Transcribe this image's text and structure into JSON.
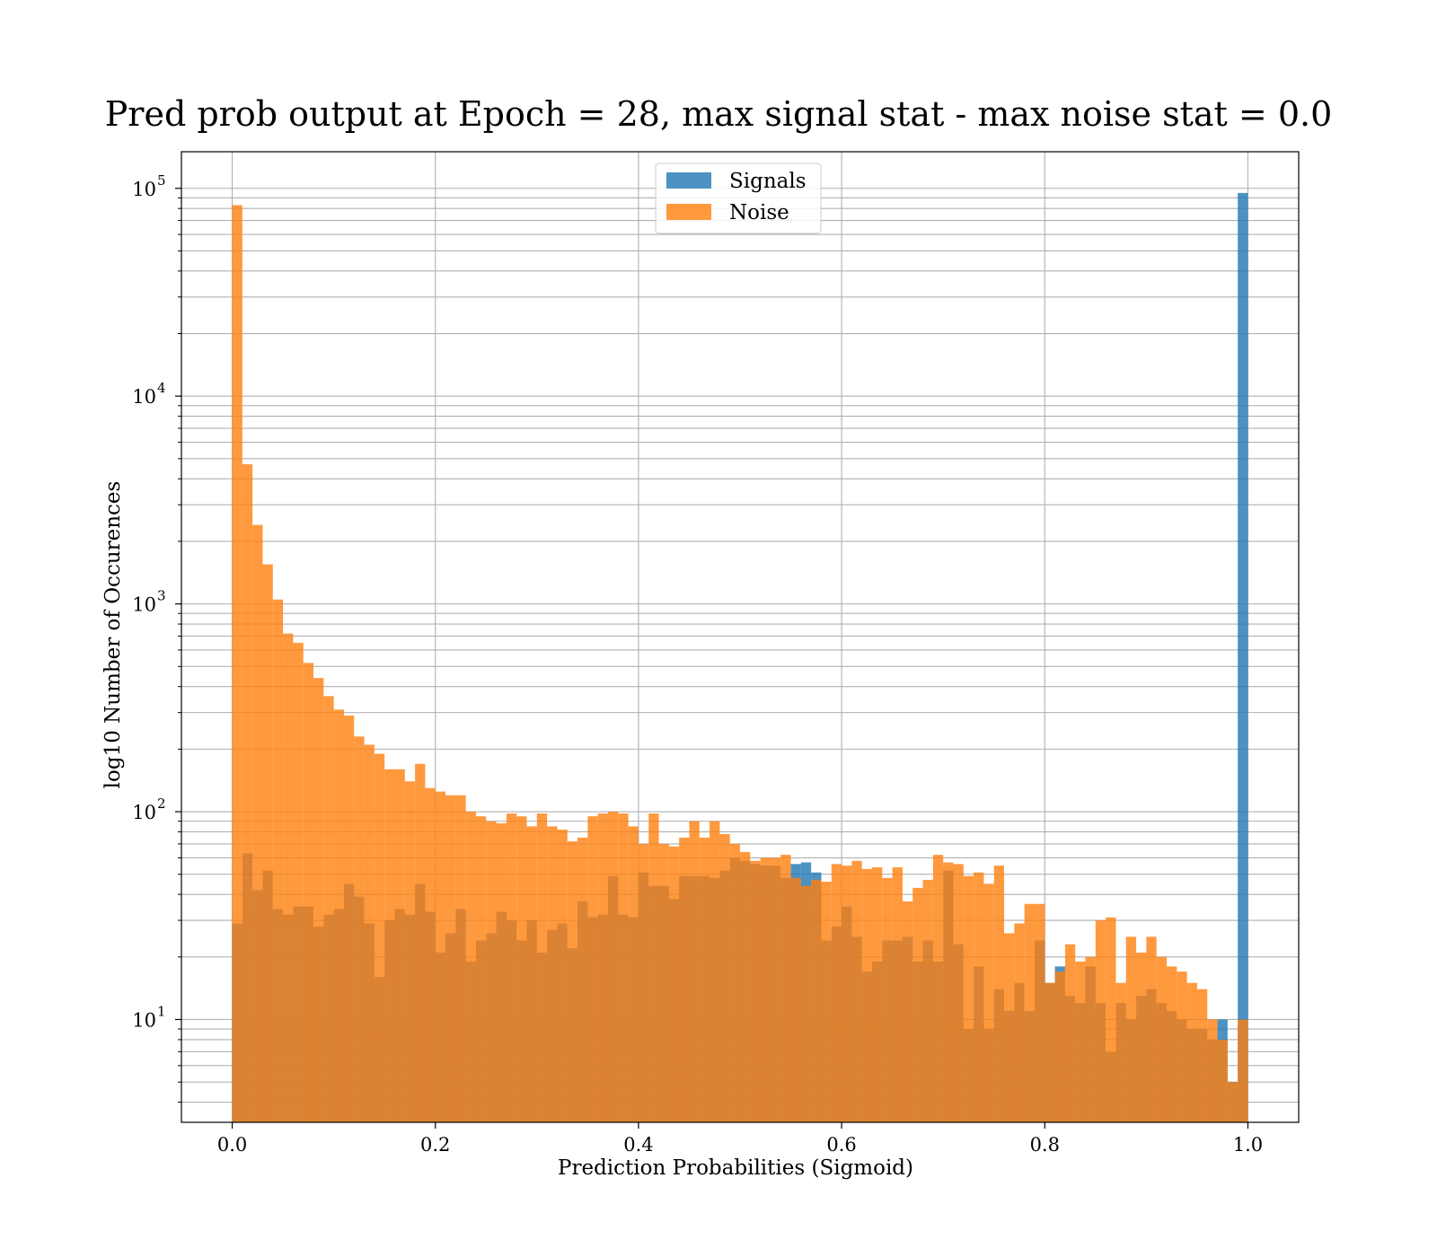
{
  "chart_data": {
    "type": "bar",
    "subtype": "overlaid-histogram",
    "title": "Pred prob output at Epoch = 28, max signal stat - max noise stat = 0.0",
    "xlabel": "Prediction Probabilities (Sigmoid)",
    "ylabel": "log10 Number of Occurences",
    "xlim": [
      -0.05,
      1.05
    ],
    "ylim": [
      3.2,
      150000
    ],
    "yscale": "log",
    "grid": true,
    "legend_position": "top-center",
    "x_ticks": [
      {
        "value": 0.0,
        "label": "0.0"
      },
      {
        "value": 0.2,
        "label": "0.2"
      },
      {
        "value": 0.4,
        "label": "0.4"
      },
      {
        "value": 0.6,
        "label": "0.6"
      },
      {
        "value": 0.8,
        "label": "0.8"
      },
      {
        "value": 1.0,
        "label": "1.0"
      }
    ],
    "y_ticks": [
      {
        "value": 10,
        "base": "10",
        "exp": "1"
      },
      {
        "value": 100,
        "base": "10",
        "exp": "2"
      },
      {
        "value": 1000,
        "base": "10",
        "exp": "3"
      },
      {
        "value": 10000,
        "base": "10",
        "exp": "4"
      },
      {
        "value": 100000,
        "base": "10",
        "exp": "5"
      }
    ],
    "bins": {
      "start": 0.0,
      "end": 1.0,
      "count": 100
    },
    "series": [
      {
        "name": "Signals",
        "color": "#1f77b4",
        "opacity": 0.8,
        "values": [
          29,
          63,
          42,
          52,
          34,
          32,
          35,
          35,
          28,
          32,
          34,
          45,
          39,
          29,
          16,
          30,
          34,
          32,
          45,
          33,
          21,
          26,
          34,
          19,
          24,
          26,
          33,
          30,
          24,
          30,
          21,
          27,
          29,
          22,
          37,
          31,
          32,
          49,
          32,
          31,
          51,
          44,
          44,
          38,
          49,
          49,
          49,
          48,
          52,
          60,
          58,
          56,
          55,
          55,
          48,
          56,
          57,
          51,
          24,
          28,
          35,
          25,
          17,
          19,
          24,
          24,
          25,
          19,
          24,
          19,
          52,
          23,
          9,
          18,
          9,
          14,
          11,
          15,
          11,
          24,
          15,
          18,
          13,
          12,
          18,
          12,
          6.96,
          12,
          10,
          13,
          14,
          12,
          11,
          10,
          9,
          9,
          8,
          10,
          5,
          95000
        ]
      },
      {
        "name": "Noise",
        "color": "#ff7f0e",
        "opacity": 0.8,
        "values": [
          83000,
          4700,
          2400,
          1550,
          1050,
          720,
          650,
          520,
          440,
          360,
          310,
          290,
          230,
          210,
          190,
          160,
          160,
          140,
          170,
          130,
          125,
          120,
          120,
          100,
          95,
          90,
          88,
          98,
          95,
          85,
          98,
          85,
          82,
          72,
          75,
          95,
          98,
          100,
          98,
          85,
          70,
          98,
          70,
          68,
          75,
          90,
          75,
          90,
          78,
          70,
          64,
          58,
          60,
          60,
          62,
          48,
          44,
          47,
          46,
          56,
          55,
          58,
          53,
          54,
          48,
          54,
          37,
          43,
          47,
          62,
          57,
          56,
          49,
          51,
          45,
          55,
          26,
          29,
          36,
          36,
          15,
          17,
          23,
          19,
          20,
          30,
          31,
          15,
          25,
          21,
          25,
          20,
          18,
          17,
          15,
          14,
          10,
          8,
          5,
          10
        ]
      }
    ]
  }
}
